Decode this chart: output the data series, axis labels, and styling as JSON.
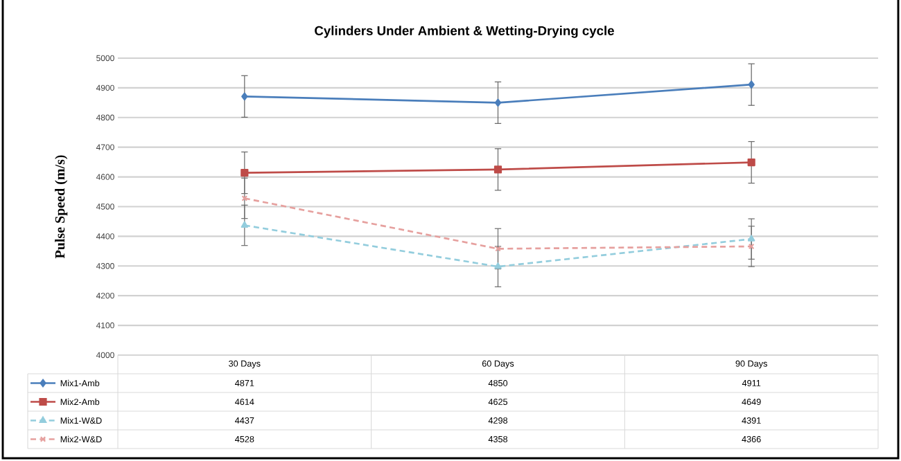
{
  "chart_data": {
    "type": "line",
    "title": "Cylinders Under Ambient & Wetting-Drying cycle",
    "ylabel": "Pulse Speed (m/s)",
    "categories": [
      "30 Days",
      "60 Days",
      "90 Days"
    ],
    "series": [
      {
        "name": "Mix1-Amb",
        "color": "#4a7ebb",
        "marker": "diamond",
        "line_style": "solid",
        "values": [
          4871,
          4850,
          4911
        ],
        "errors": [
          70,
          70,
          70
        ]
      },
      {
        "name": "Mix2-Amb",
        "color": "#be4b48",
        "marker": "square",
        "line_style": "solid",
        "values": [
          4614,
          4625,
          4649
        ],
        "errors": [
          70,
          70,
          70
        ]
      },
      {
        "name": "Mix1-W&D",
        "color": "#93cddd",
        "marker": "triangle",
        "line_style": "dashed",
        "values": [
          4437,
          4298,
          4391
        ],
        "errors": [
          68,
          68,
          68
        ]
      },
      {
        "name": "Mix2-W&D",
        "color": "#e6a09e",
        "marker": "cross",
        "line_style": "dashed",
        "values": [
          4528,
          4358,
          4366
        ],
        "errors": [
          68,
          68,
          68
        ]
      }
    ],
    "ylim": [
      4000,
      5000
    ],
    "yticks": [
      4000,
      4100,
      4200,
      4300,
      4400,
      4500,
      4600,
      4700,
      4800,
      4900,
      5000
    ],
    "grid": "y",
    "legend": "bottom",
    "data_labels": true
  }
}
